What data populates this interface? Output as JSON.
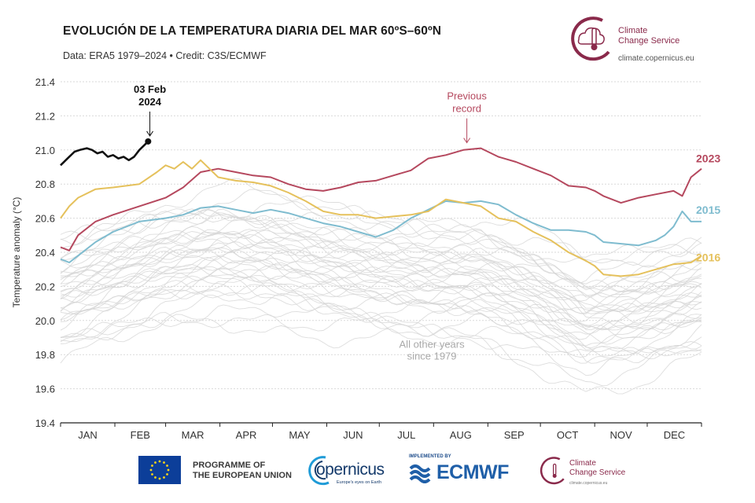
{
  "header": {
    "title": "EVOLUCIÓN DE LA TEMPERATURA DIARIA DEL MAR 60ºS–60ºN",
    "subtitle": "Data: ERA5 1979–2024 • Credit: C3S/ECMWF"
  },
  "logo_top": {
    "brand": "Climate\nChange Service",
    "url": "climate.copernicus.eu",
    "icon": "thermometer-cloud-icon",
    "color": "#8a2a4b"
  },
  "footer": {
    "eu_text": "PROGRAMME OF\nTHE EUROPEAN UNION",
    "copernicus_name": "opernicus",
    "copernicus_tag": "Europe's eyes on Earth",
    "ecmwf_implemented": "IMPLEMENTED BY",
    "ecmwf_name": "ECMWF",
    "c3s_brand": "Climate\nChange Service",
    "c3s_url": "climate.copernicus.eu"
  },
  "chart_data": {
    "type": "line",
    "title": "EVOLUCIÓN DE LA TEMPERATURA DIARIA DEL MAR 60ºS–60ºN",
    "ylabel": "Temperature anomaly (°C)",
    "xlabel": "",
    "ylim": [
      19.4,
      21.4
    ],
    "yticks": [
      19.4,
      19.6,
      19.8,
      20.0,
      20.2,
      20.4,
      20.6,
      20.8,
      21.0,
      21.2,
      21.4
    ],
    "xlim": [
      0,
      366
    ],
    "months": [
      {
        "label": "JAN",
        "start": 0,
        "end": 31
      },
      {
        "label": "FEB",
        "start": 31,
        "end": 60
      },
      {
        "label": "MAR",
        "start": 60,
        "end": 91
      },
      {
        "label": "APR",
        "start": 91,
        "end": 121
      },
      {
        "label": "MAY",
        "start": 121,
        "end": 152
      },
      {
        "label": "JUN",
        "start": 152,
        "end": 182
      },
      {
        "label": "JUL",
        "start": 182,
        "end": 213
      },
      {
        "label": "AUG",
        "start": 213,
        "end": 244
      },
      {
        "label": "SEP",
        "start": 244,
        "end": 274
      },
      {
        "label": "OCT",
        "start": 274,
        "end": 305
      },
      {
        "label": "NOV",
        "start": 305,
        "end": 335
      },
      {
        "label": "DEC",
        "start": 335,
        "end": 366
      }
    ],
    "grid": true,
    "series": [
      {
        "name": "2024",
        "color": "#111111",
        "x": [
          0,
          4,
          8,
          11,
          15,
          18,
          21,
          24,
          27,
          30,
          33,
          36,
          39,
          42,
          45,
          48,
          50
        ],
        "y": [
          20.91,
          20.95,
          20.99,
          21.0,
          21.01,
          21.0,
          20.98,
          20.99,
          20.96,
          20.97,
          20.95,
          20.96,
          20.94,
          20.96,
          21.0,
          21.03,
          21.05
        ]
      },
      {
        "name": "2023",
        "color": "#b5485e",
        "x": [
          0,
          5,
          10,
          20,
          30,
          45,
          60,
          70,
          80,
          90,
          100,
          110,
          120,
          130,
          140,
          150,
          160,
          170,
          180,
          190,
          200,
          210,
          220,
          230,
          240,
          250,
          260,
          270,
          280,
          290,
          300,
          305,
          310,
          320,
          330,
          340,
          350,
          355,
          360,
          366
        ],
        "y": [
          20.43,
          20.41,
          20.5,
          20.58,
          20.62,
          20.67,
          20.72,
          20.78,
          20.87,
          20.89,
          20.87,
          20.85,
          20.84,
          20.8,
          20.77,
          20.76,
          20.78,
          20.81,
          20.82,
          20.85,
          20.88,
          20.95,
          20.97,
          21.0,
          21.01,
          20.96,
          20.93,
          20.89,
          20.85,
          20.79,
          20.78,
          20.76,
          20.73,
          20.69,
          20.72,
          20.74,
          20.76,
          20.73,
          20.84,
          20.89
        ]
      },
      {
        "name": "2015",
        "color": "#7fbccf",
        "x": [
          0,
          5,
          10,
          20,
          30,
          45,
          60,
          70,
          80,
          90,
          100,
          110,
          120,
          130,
          140,
          150,
          160,
          170,
          180,
          190,
          200,
          210,
          220,
          230,
          240,
          250,
          260,
          270,
          280,
          290,
          300,
          305,
          310,
          320,
          330,
          340,
          345,
          350,
          355,
          360,
          366
        ],
        "y": [
          20.36,
          20.34,
          20.38,
          20.46,
          20.52,
          20.58,
          20.6,
          20.62,
          20.66,
          20.67,
          20.65,
          20.63,
          20.65,
          20.63,
          20.6,
          20.57,
          20.55,
          20.52,
          20.49,
          20.53,
          20.6,
          20.65,
          20.7,
          20.69,
          20.7,
          20.68,
          20.62,
          20.57,
          20.53,
          20.53,
          20.52,
          20.5,
          20.46,
          20.45,
          20.44,
          20.47,
          20.5,
          20.55,
          20.64,
          20.58,
          20.58
        ]
      },
      {
        "name": "2016",
        "color": "#e5c15c",
        "x": [
          0,
          5,
          10,
          20,
          30,
          45,
          55,
          60,
          65,
          70,
          75,
          80,
          90,
          100,
          110,
          120,
          130,
          140,
          150,
          160,
          170,
          180,
          190,
          200,
          210,
          220,
          230,
          240,
          250,
          260,
          270,
          280,
          290,
          300,
          305,
          310,
          320,
          330,
          340,
          350,
          360,
          366
        ],
        "y": [
          20.6,
          20.67,
          20.72,
          20.77,
          20.78,
          20.8,
          20.87,
          20.91,
          20.89,
          20.93,
          20.89,
          20.94,
          20.84,
          20.82,
          20.81,
          20.79,
          20.75,
          20.7,
          20.64,
          20.62,
          20.62,
          20.6,
          20.61,
          20.62,
          20.64,
          20.71,
          20.69,
          20.67,
          20.6,
          20.58,
          20.52,
          20.47,
          20.4,
          20.35,
          20.32,
          20.27,
          20.26,
          20.27,
          20.3,
          20.33,
          20.34,
          20.38
        ]
      }
    ],
    "background_years": {
      "label": "All other years\nsince 1979",
      "color": "#d4d4d4",
      "seasonal_x": [
        0,
        30,
        60,
        90,
        120,
        150,
        180,
        210,
        240,
        270,
        300,
        330,
        366
      ],
      "seasonal_y": [
        0.0,
        0.1,
        0.2,
        0.25,
        0.23,
        0.17,
        0.13,
        0.1,
        0.1,
        0.0,
        -0.14,
        -0.1,
        0.0
      ],
      "baselines": [
        19.75,
        19.8,
        19.84,
        19.88,
        19.9,
        19.93,
        19.95,
        19.97,
        19.99,
        20.0,
        20.02,
        20.03,
        20.05,
        20.06,
        20.08,
        20.09,
        20.1,
        20.12,
        20.13,
        20.15,
        20.16,
        20.17,
        20.18,
        20.2,
        20.21,
        20.22,
        20.24,
        20.25,
        20.26,
        20.28,
        20.29,
        20.3,
        20.32,
        20.33,
        20.35,
        20.37,
        20.4,
        20.43,
        20.46,
        20.5
      ],
      "wiggle": 0.06
    },
    "annotations": [
      {
        "text": "03 Feb\n2024",
        "x": 51,
        "y": 21.05,
        "color": "#111111",
        "bold": true
      },
      {
        "text": "Previous\nrecord",
        "x": 232,
        "y": 21.01,
        "color": "#b5485e",
        "bold": false
      }
    ],
    "series_labels": [
      {
        "text": "2023",
        "series": "2023"
      },
      {
        "text": "2015",
        "series": "2015"
      },
      {
        "text": "2016",
        "series": "2016"
      }
    ]
  }
}
